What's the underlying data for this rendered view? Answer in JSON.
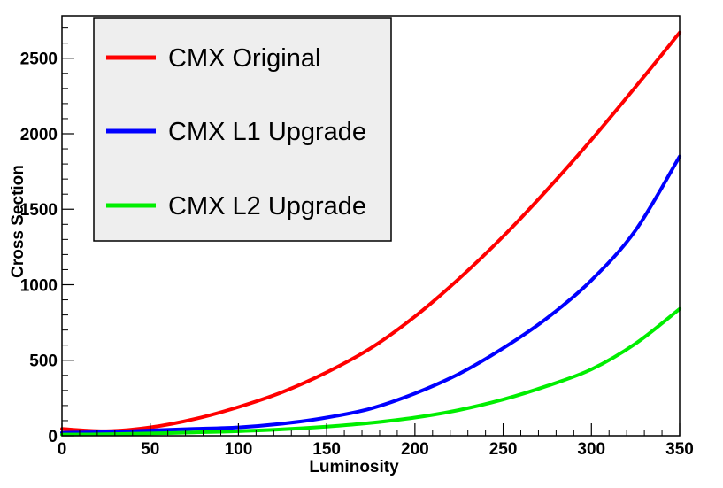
{
  "chart_data": {
    "type": "line",
    "title": "",
    "xlabel": "Luminosity",
    "ylabel": "Cross Section",
    "xlim": [
      0,
      350
    ],
    "ylim": [
      0,
      2780
    ],
    "xticks": [
      "0",
      "50",
      "100",
      "150",
      "200",
      "250",
      "300",
      "350"
    ],
    "yticks": [
      "0",
      "500",
      "1000",
      "1500",
      "2000",
      "2500"
    ],
    "grid": false,
    "legend_position": "top-left",
    "series": [
      {
        "name": "CMX Original",
        "color": "#ff0000",
        "x": [
          0,
          25,
          50,
          75,
          100,
          125,
          150,
          175,
          200,
          225,
          250,
          275,
          300,
          325,
          350
        ],
        "y": [
          45,
          30,
          55,
          110,
          190,
          290,
          420,
          580,
          790,
          1040,
          1320,
          1630,
          1960,
          2310,
          2670
        ]
      },
      {
        "name": "CMX L1 Upgrade",
        "color": "#0000ff",
        "x": [
          0,
          25,
          50,
          75,
          100,
          125,
          150,
          175,
          200,
          225,
          250,
          275,
          300,
          325,
          350
        ],
        "y": [
          20,
          25,
          35,
          45,
          55,
          80,
          120,
          180,
          280,
          410,
          580,
          780,
          1030,
          1360,
          1850
        ]
      },
      {
        "name": "CMX L2 Upgrade",
        "color": "#00ee00",
        "x": [
          0,
          25,
          50,
          75,
          100,
          125,
          150,
          175,
          200,
          225,
          250,
          275,
          300,
          325,
          350
        ],
        "y": [
          8,
          10,
          15,
          22,
          30,
          42,
          60,
          85,
          120,
          170,
          240,
          330,
          440,
          610,
          840
        ]
      }
    ]
  }
}
